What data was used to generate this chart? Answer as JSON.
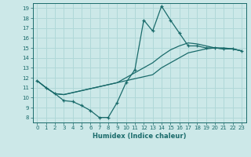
{
  "xlabel": "Humidex (Indice chaleur)",
  "bg_color": "#cce8e8",
  "line_color": "#1a6b6b",
  "grid_color": "#b0d8d8",
  "xlim": [
    -0.5,
    23.5
  ],
  "ylim": [
    7.5,
    19.5
  ],
  "yticks": [
    8,
    9,
    10,
    11,
    12,
    13,
    14,
    15,
    16,
    17,
    18,
    19
  ],
  "xticks": [
    0,
    1,
    2,
    3,
    4,
    5,
    6,
    7,
    8,
    9,
    10,
    11,
    12,
    13,
    14,
    15,
    16,
    17,
    18,
    19,
    20,
    21,
    22,
    23
  ],
  "line1_x": [
    0,
    1,
    2,
    3,
    4,
    5,
    6,
    7,
    8,
    9,
    10,
    11,
    12,
    13,
    14,
    15,
    16,
    17,
    18,
    19,
    20,
    21,
    22,
    23
  ],
  "line1_y": [
    11.7,
    11.0,
    10.4,
    9.7,
    9.6,
    9.2,
    8.7,
    8.0,
    8.0,
    9.5,
    11.5,
    12.8,
    17.8,
    16.7,
    19.2,
    17.8,
    16.5,
    15.2,
    15.2,
    15.0,
    15.0,
    14.9,
    14.9,
    14.7
  ],
  "line2_x": [
    0,
    1,
    2,
    3,
    4,
    5,
    6,
    7,
    8,
    9,
    10,
    11,
    12,
    13,
    14,
    15,
    16,
    17,
    18,
    19,
    20,
    21,
    22,
    23
  ],
  "line2_y": [
    11.7,
    11.0,
    10.4,
    10.3,
    10.5,
    10.7,
    10.9,
    11.1,
    11.3,
    11.5,
    11.7,
    11.9,
    12.1,
    12.3,
    13.0,
    13.5,
    14.0,
    14.5,
    14.7,
    14.9,
    15.0,
    15.0,
    14.9,
    14.7
  ],
  "line3_x": [
    0,
    1,
    2,
    3,
    4,
    5,
    6,
    7,
    8,
    9,
    10,
    11,
    12,
    13,
    14,
    15,
    16,
    17,
    18,
    19,
    20,
    21,
    22,
    23
  ],
  "line3_y": [
    11.7,
    11.0,
    10.4,
    10.3,
    10.5,
    10.7,
    10.9,
    11.1,
    11.3,
    11.5,
    12.0,
    12.5,
    13.0,
    13.5,
    14.2,
    14.8,
    15.2,
    15.5,
    15.4,
    15.2,
    15.0,
    14.9,
    14.9,
    14.7
  ]
}
